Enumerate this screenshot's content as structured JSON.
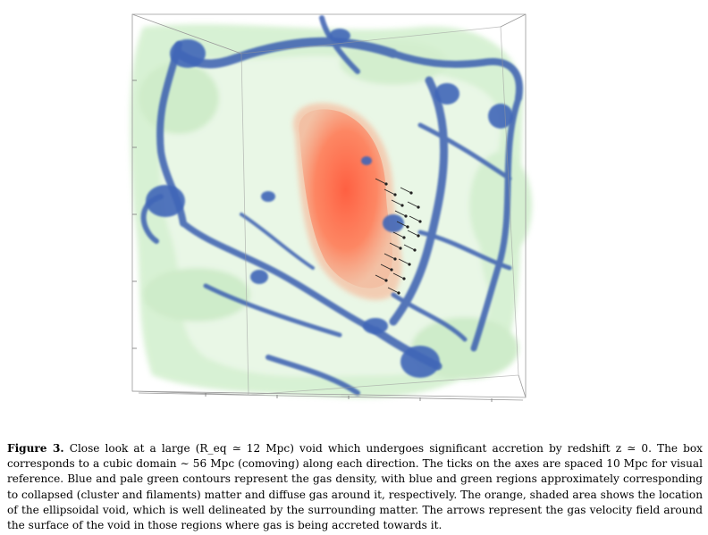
{
  "figure": {
    "label": "Figure 3.",
    "caption": "Close look at a large (R_eq ≃ 12 Mpc) void which undergoes significant accretion by redshift z ≃ 0. The box corresponds to a cubic domain ∼ 56 Mpc (comoving) along each direction. The ticks on the axes are spaced 10 Mpc for visual reference. Blue and pale green contours represent the gas density, with blue and green regions approximately corresponding to collapsed (cluster and filaments) matter and diffuse gas around it, respectively. The orange, shaded area shows the location of the ellipsoidal void, which is well delineated by the surrounding matter. The arrows represent the gas velocity field around the surface of the void in those regions where gas is being accreted towards it."
  },
  "colors": {
    "filament_blue": "#3a5fb0",
    "diffuse_green": "#a9e0a3",
    "void_orange": "#ff6a4d",
    "void_halo": "#f3b89a",
    "box_lines": "#9a9a9a"
  }
}
